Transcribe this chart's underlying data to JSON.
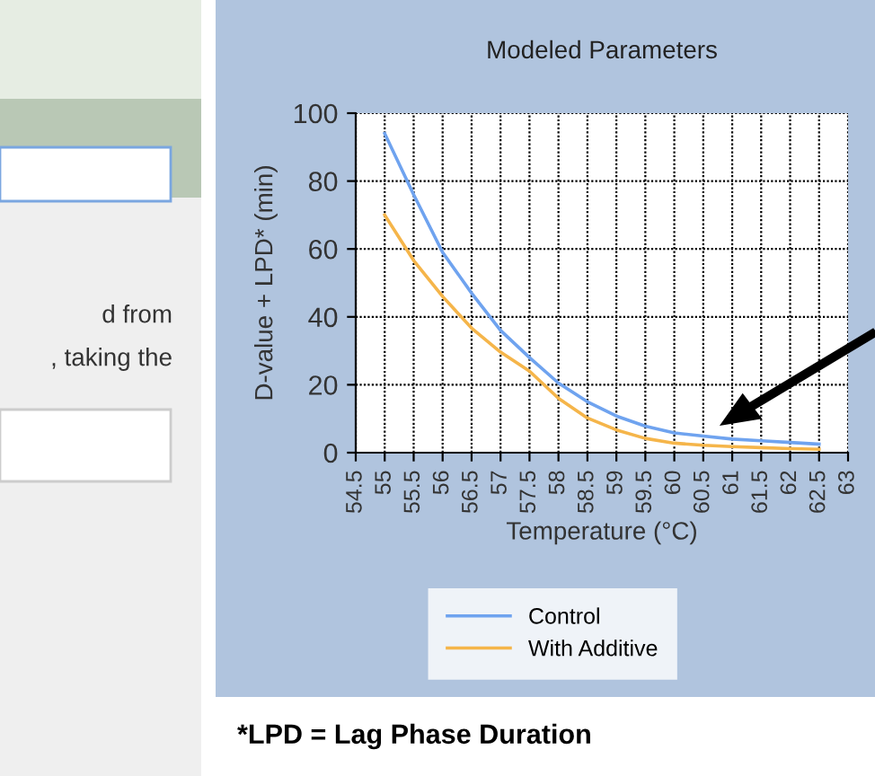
{
  "chart_data": {
    "type": "line",
    "title": "Modeled Parameters",
    "xlabel": "Temperature (°C)",
    "ylabel": "D-value + LPD* (min)",
    "x": [
      55,
      55.5,
      56,
      56.5,
      57,
      57.5,
      58,
      58.5,
      59,
      59.5,
      60,
      60.5,
      61,
      61.5,
      62,
      62.5
    ],
    "series": [
      {
        "name": "Control",
        "color": "#6fa3ef",
        "values": [
          94,
          76,
          59,
          47,
          36,
          28,
          20.5,
          15,
          10.8,
          7.8,
          5.8,
          4.9,
          4,
          3.5,
          3,
          2.5
        ]
      },
      {
        "name": "With Additive",
        "color": "#f5b54a",
        "values": [
          70,
          56.6,
          46,
          36.7,
          29.6,
          24,
          16,
          10.2,
          6.7,
          4.2,
          2.8,
          2.2,
          1.8,
          1.5,
          1.2,
          1
        ]
      }
    ],
    "xlim": [
      54.5,
      63
    ],
    "xticks": [
      54.5,
      55,
      55.5,
      56,
      56.5,
      57,
      57.5,
      58,
      58.5,
      59,
      59.5,
      60,
      60.5,
      61,
      61.5,
      62,
      62.5,
      63
    ],
    "ylim": [
      0,
      100
    ],
    "yticks": [
      0,
      20,
      40,
      60,
      80,
      100
    ],
    "grid": true,
    "legend": "bottom",
    "marker": "none",
    "line_style": "solid",
    "annotations": [
      "*LPD = Lag Phase Duration",
      "d from",
      ", taking the"
    ]
  }
}
